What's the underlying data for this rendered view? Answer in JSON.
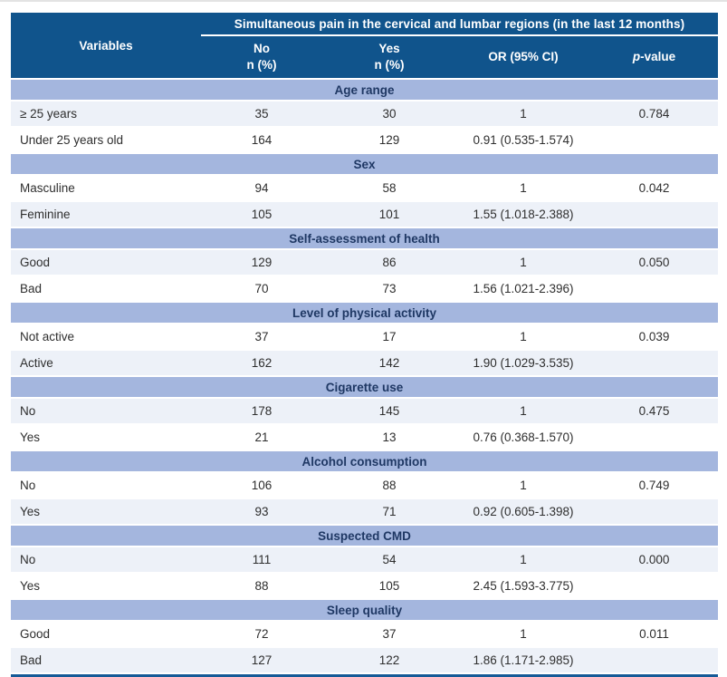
{
  "page": {
    "top_edge_color": "#e3e3e3",
    "background": "#ffffff"
  },
  "colors": {
    "header_bg": "#10548C",
    "header_text": "#ffffff",
    "band_bg": "#A4B6DE",
    "band_text": "#1F3864",
    "row_light_bg": "#EDF1F8",
    "row_white_bg": "#ffffff",
    "body_text": "#2e2e2e",
    "bottom_border": "#155A97"
  },
  "table": {
    "header": {
      "variables_label": "Variables",
      "span_title": "Simultaneous pain in the cervical and lumbar regions (in the last 12 months)",
      "columns": [
        {
          "line1": "No",
          "line2": "n (%)"
        },
        {
          "line1": "Yes",
          "line2": "n (%)"
        },
        {
          "line1": "OR (95% CI)",
          "line2": ""
        },
        {
          "italic": "p",
          "rest": "-value"
        }
      ]
    },
    "sections": [
      {
        "title": "Age range",
        "rows": [
          {
            "label": "≥ 25 years",
            "no": "35",
            "yes": "30",
            "or": "1",
            "p": "0.784",
            "shade": "light"
          },
          {
            "label": "Under 25 years old",
            "no": "164",
            "yes": "129",
            "or": "0.91 (0.535-1.574)",
            "p": "",
            "shade": "white"
          }
        ]
      },
      {
        "title": "Sex",
        "rows": [
          {
            "label": "Masculine",
            "no": "94",
            "yes": "58",
            "or": "1",
            "p": "0.042",
            "shade": "white"
          },
          {
            "label": "Feminine",
            "no": "105",
            "yes": "101",
            "or": "1.55 (1.018-2.388)",
            "p": "",
            "shade": "light"
          }
        ]
      },
      {
        "title": "Self-assessment of health",
        "rows": [
          {
            "label": "Good",
            "no": "129",
            "yes": "86",
            "or": "1",
            "p": "0.050",
            "shade": "light"
          },
          {
            "label": "Bad",
            "no": "70",
            "yes": "73",
            "or": "1.56 (1.021-2.396)",
            "p": "",
            "shade": "white"
          }
        ]
      },
      {
        "title": "Level of physical activity",
        "rows": [
          {
            "label": "Not active",
            "no": "37",
            "yes": "17",
            "or": "1",
            "p": "0.039",
            "shade": "white"
          },
          {
            "label": "Active",
            "no": "162",
            "yes": "142",
            "or": "1.90 (1.029-3.535)",
            "p": "",
            "shade": "light"
          }
        ]
      },
      {
        "title": "Cigarette use",
        "rows": [
          {
            "label": "No",
            "no": "178",
            "yes": "145",
            "or": "1",
            "p": "0.475",
            "shade": "light"
          },
          {
            "label": "Yes",
            "no": "21",
            "yes": "13",
            "or": "0.76 (0.368-1.570)",
            "p": "",
            "shade": "white"
          }
        ]
      },
      {
        "title": "Alcohol consumption",
        "rows": [
          {
            "label": "No",
            "no": "106",
            "yes": "88",
            "or": "1",
            "p": "0.749",
            "shade": "white"
          },
          {
            "label": "Yes",
            "no": "93",
            "yes": "71",
            "or": "0.92 (0.605-1.398)",
            "p": "",
            "shade": "light"
          }
        ]
      },
      {
        "title": "Suspected CMD",
        "rows": [
          {
            "label": "No",
            "no": "111",
            "yes": "54",
            "or": "1",
            "p": "0.000",
            "shade": "light"
          },
          {
            "label": "Yes",
            "no": "88",
            "yes": "105",
            "or": "2.45 (1.593-3.775)",
            "p": "",
            "shade": "white"
          }
        ]
      },
      {
        "title": "Sleep quality",
        "rows": [
          {
            "label": "Good",
            "no": "72",
            "yes": "37",
            "or": "1",
            "p": "0.011",
            "shade": "white"
          },
          {
            "label": "Bad",
            "no": "127",
            "yes": "122",
            "or": "1.86 (1.171-2.985)",
            "p": "",
            "shade": "light"
          }
        ]
      }
    ]
  }
}
